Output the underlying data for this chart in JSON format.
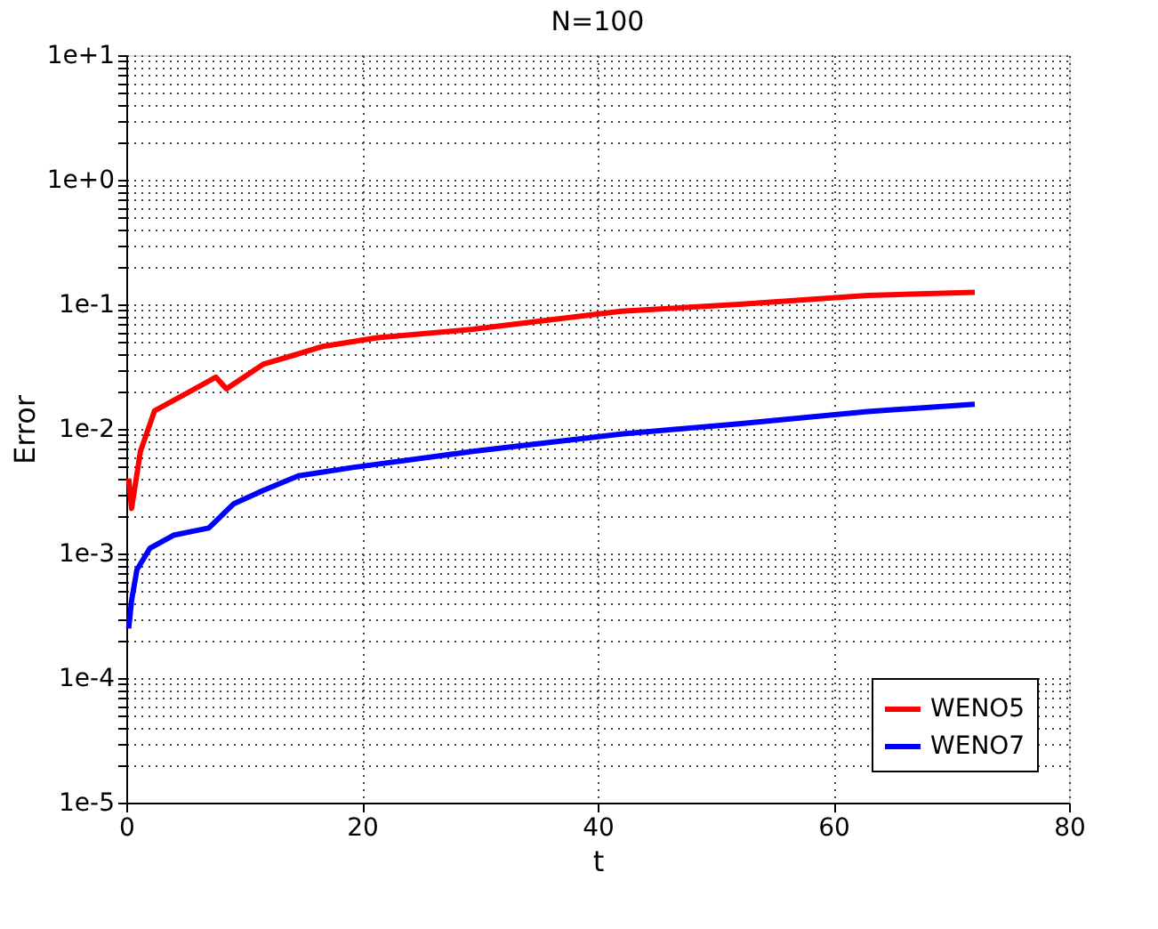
{
  "chart_data": {
    "type": "line",
    "title": "N=100",
    "xlabel": "t",
    "ylabel": "Error",
    "log": "y",
    "grid": true,
    "legend": "bottom right",
    "line_style": "solid",
    "marker": "none",
    "xlim": [
      0,
      80
    ],
    "xticks": [
      0,
      20,
      40,
      60,
      80
    ],
    "ylim": [
      1e-05,
      10
    ],
    "yticks": [
      {
        "value": 1e-05,
        "label": "1e-5"
      },
      {
        "value": 2e-05,
        "label": null
      },
      {
        "value": 3e-05,
        "label": null
      },
      {
        "value": 4e-05,
        "label": null
      },
      {
        "value": 5e-05,
        "label": null
      },
      {
        "value": 6e-05,
        "label": null
      },
      {
        "value": 7e-05,
        "label": null
      },
      {
        "value": 8e-05,
        "label": null
      },
      {
        "value": 9e-05,
        "label": null
      },
      {
        "value": 0.0001,
        "label": "1e-4"
      },
      {
        "value": 0.0002,
        "label": null
      },
      {
        "value": 0.0003,
        "label": null
      },
      {
        "value": 0.0004,
        "label": null
      },
      {
        "value": 0.0005,
        "label": null
      },
      {
        "value": 0.0006,
        "label": null
      },
      {
        "value": 0.0007,
        "label": null
      },
      {
        "value": 0.0008,
        "label": null
      },
      {
        "value": 0.0009,
        "label": null
      },
      {
        "value": 0.001,
        "label": "1e-3"
      },
      {
        "value": 0.002,
        "label": null
      },
      {
        "value": 0.003,
        "label": null
      },
      {
        "value": 0.004,
        "label": null
      },
      {
        "value": 0.005,
        "label": null
      },
      {
        "value": 0.006,
        "label": null
      },
      {
        "value": 0.007,
        "label": null
      },
      {
        "value": 0.008,
        "label": null
      },
      {
        "value": 0.009,
        "label": null
      },
      {
        "value": 0.01,
        "label": "1e-2"
      },
      {
        "value": 0.02,
        "label": null
      },
      {
        "value": 0.03,
        "label": null
      },
      {
        "value": 0.04,
        "label": null
      },
      {
        "value": 0.05,
        "label": null
      },
      {
        "value": 0.06,
        "label": null
      },
      {
        "value": 0.07,
        "label": null
      },
      {
        "value": 0.08,
        "label": null
      },
      {
        "value": 0.09,
        "label": null
      },
      {
        "value": 0.1,
        "label": "1e-1"
      },
      {
        "value": 0.2,
        "label": null
      },
      {
        "value": 0.3,
        "label": null
      },
      {
        "value": 0.4,
        "label": null
      },
      {
        "value": 0.5,
        "label": null
      },
      {
        "value": 0.6,
        "label": null
      },
      {
        "value": 0.7,
        "label": null
      },
      {
        "value": 0.8,
        "label": null
      },
      {
        "value": 0.9,
        "label": null
      },
      {
        "value": 1,
        "label": "1e+0"
      },
      {
        "value": 2,
        "label": null
      },
      {
        "value": 3,
        "label": null
      },
      {
        "value": 4,
        "label": null
      },
      {
        "value": 5,
        "label": null
      },
      {
        "value": 6,
        "label": null
      },
      {
        "value": 7,
        "label": null
      },
      {
        "value": 8,
        "label": null
      },
      {
        "value": 9,
        "label": null
      },
      {
        "value": 10,
        "label": "1e+1"
      }
    ],
    "series": [
      {
        "name": "WENO5",
        "color": "#ff0000",
        "x": [
          0.2,
          0.45,
          1.2,
          2.4,
          5.0,
          7.6,
          8.5,
          11.6,
          14.2,
          16.7,
          21.3,
          29.4,
          42,
          52,
          62.9,
          72
        ],
        "values": [
          0.004,
          0.0023,
          0.0066,
          0.014,
          0.019,
          0.026,
          0.021,
          0.033,
          0.039,
          0.046,
          0.054,
          0.063,
          0.088,
          0.1,
          0.118,
          0.125
        ]
      },
      {
        "name": "WENO7",
        "color": "#0000ff",
        "x": [
          0.2,
          0.45,
          0.9,
          2.0,
          4.0,
          5.5,
          7.0,
          9.1,
          11.6,
          14.6,
          19.2,
          29.4,
          42,
          52,
          62.9,
          72
        ],
        "values": [
          0.00025,
          0.00042,
          0.00074,
          0.0011,
          0.0014,
          0.0015,
          0.0016,
          0.0025,
          0.0032,
          0.0042,
          0.0049,
          0.0066,
          0.0091,
          0.011,
          0.0138,
          0.0158
        ]
      }
    ]
  }
}
